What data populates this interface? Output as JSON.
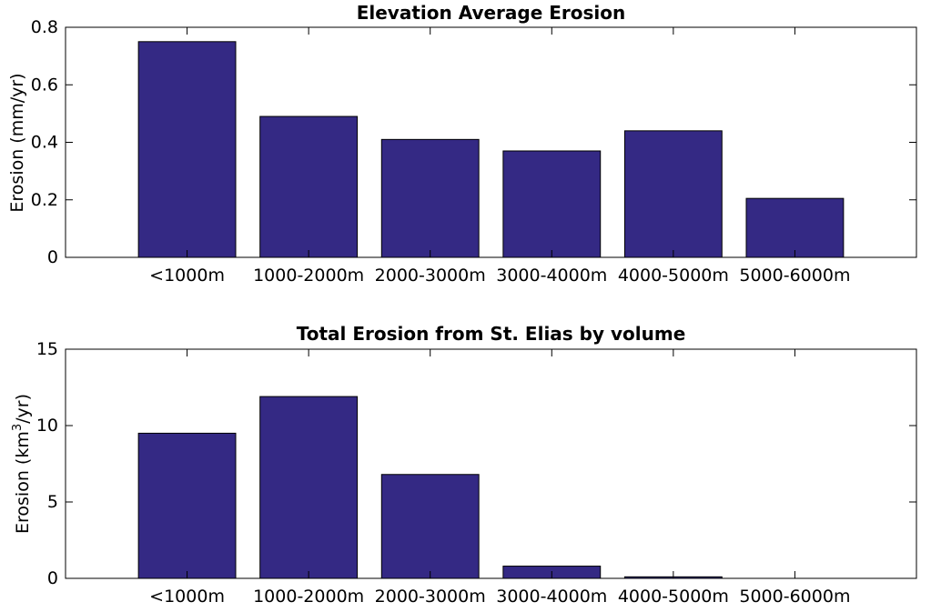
{
  "chart_data": [
    {
      "type": "bar",
      "title": "Elevation Average Erosion",
      "xlabel": "",
      "ylabel": "Erosion (mm/yr)",
      "ylabel_parts": [
        "Erosion (mm/yr)"
      ],
      "categories": [
        "<1000m",
        "1000-2000m",
        "2000-3000m",
        "3000-4000m",
        "4000-5000m",
        "5000-6000m"
      ],
      "values": [
        0.75,
        0.49,
        0.41,
        0.37,
        0.44,
        0.205
      ],
      "ylim": [
        0,
        0.8
      ],
      "yticks": [
        0,
        0.2,
        0.4,
        0.6,
        0.8
      ],
      "ytick_labels": [
        "0",
        "0.2",
        "0.4",
        "0.6",
        "0.8"
      ],
      "grid": false,
      "bar_color": "#342984"
    },
    {
      "type": "bar",
      "title": "Total Erosion from St. Elias by volume",
      "xlabel": "",
      "ylabel": "Erosion (km3/yr)",
      "ylabel_parts": [
        "Erosion (km",
        "3",
        "/yr)"
      ],
      "categories": [
        "<1000m",
        "1000-2000m",
        "2000-3000m",
        "3000-4000m",
        "4000-5000m",
        "5000-6000m"
      ],
      "values": [
        9.5,
        11.9,
        6.8,
        0.8,
        0.1,
        0
      ],
      "ylim": [
        0,
        15
      ],
      "yticks": [
        0,
        5,
        10,
        15
      ],
      "ytick_labels": [
        "0",
        "5",
        "10",
        "15"
      ],
      "grid": false,
      "bar_color": "#342984"
    }
  ]
}
